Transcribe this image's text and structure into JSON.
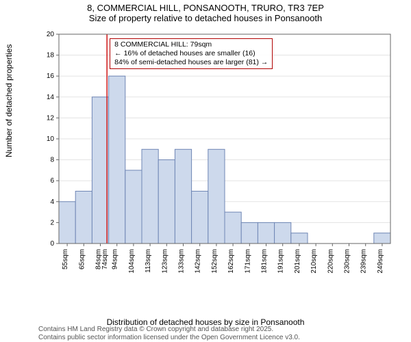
{
  "title": {
    "line1": "8, COMMERCIAL HILL, PONSANOOTH, TRURO, TR3 7EP",
    "line2": "Size of property relative to detached houses in Ponsanooth"
  },
  "chart": {
    "type": "histogram",
    "ylabel": "Number of detached properties",
    "xlabel": "Distribution of detached houses by size in Ponsanooth",
    "ylim": [
      0,
      20
    ],
    "ytick_step": 2,
    "bar_fill": "#cdd9ec",
    "bar_stroke": "#6f86b5",
    "grid_color": "#e3e3e3",
    "axis_color": "#666666",
    "background": "#ffffff",
    "marker_line_color": "#d01616",
    "marker_x_label": "74sqm",
    "marker_x_value": 79,
    "x_start": 50,
    "x_step": 10,
    "categories": [
      "55sqm",
      "65sqm",
      "84sqm",
      "94sqm",
      "104sqm",
      "113sqm",
      "123sqm",
      "133sqm",
      "142sqm",
      "152sqm",
      "162sqm",
      "171sqm",
      "181sqm",
      "191sqm",
      "201sqm",
      "210sqm",
      "220sqm",
      "230sqm",
      "239sqm",
      "249sqm"
    ],
    "values": [
      4,
      5,
      14,
      16,
      7,
      9,
      8,
      9,
      5,
      9,
      3,
      2,
      2,
      2,
      1,
      0,
      0,
      0,
      0,
      1
    ],
    "tick_fontsize": 10,
    "label_fontsize": 12,
    "title_fontsize": 13
  },
  "annotation": {
    "line1": "8 COMMERCIAL HILL: 79sqm",
    "line2": "← 16% of detached houses are smaller (16)",
    "line3": "84% of semi-detached houses are larger (81) →"
  },
  "footer": {
    "line1": "Contains HM Land Registry data © Crown copyright and database right 2025.",
    "line2": "Contains public sector information licensed under the Open Government Licence v3.0."
  }
}
